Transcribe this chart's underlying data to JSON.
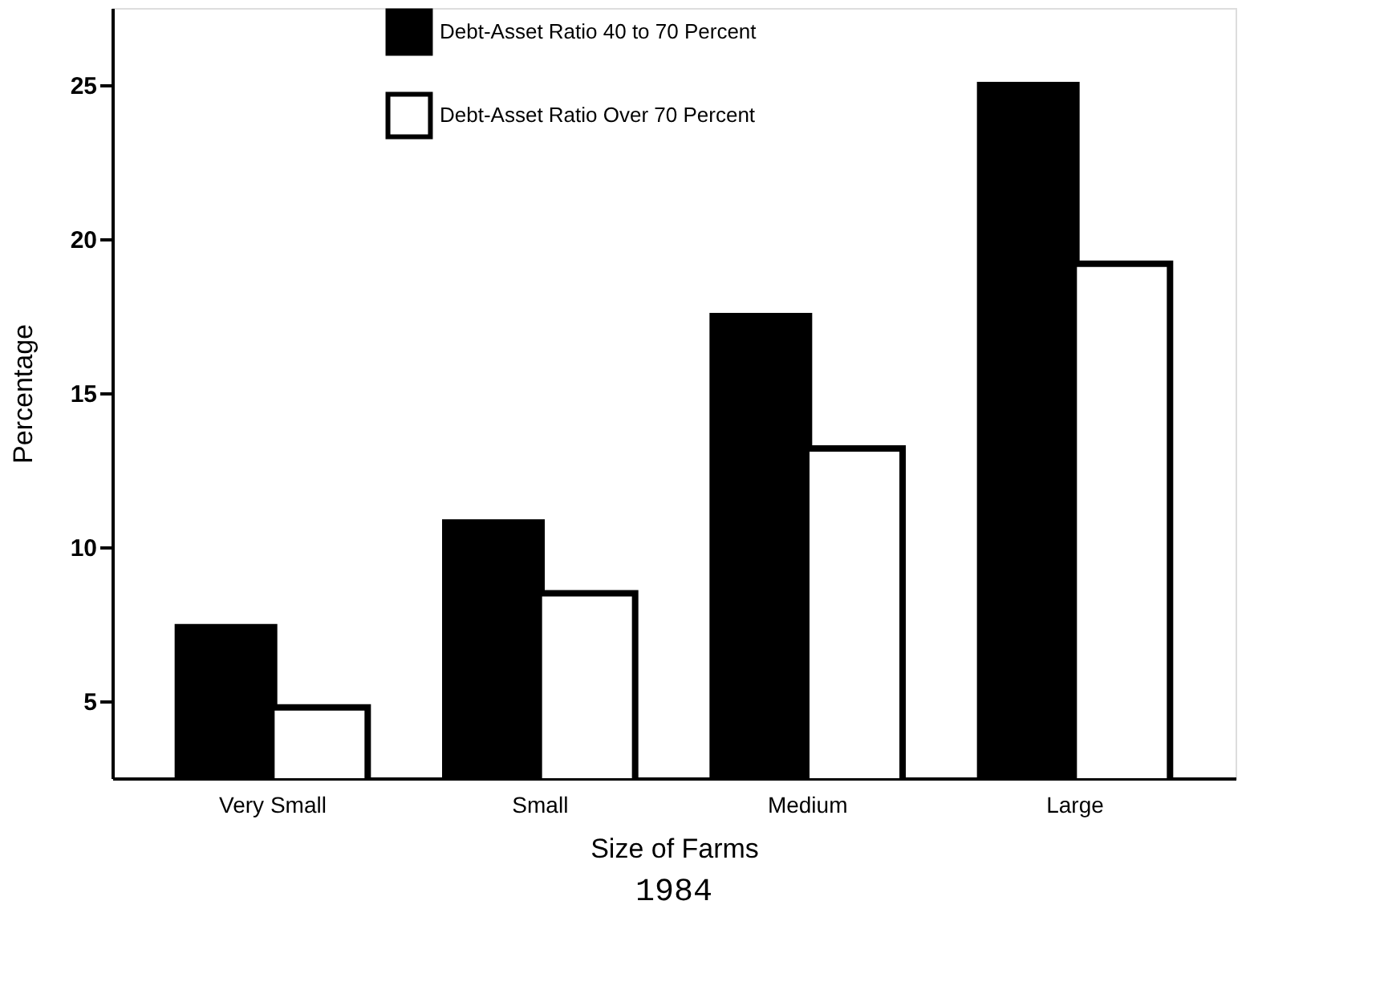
{
  "chart_data": {
    "type": "bar",
    "xlabel": "Size of Farms",
    "ylabel": "Percentage",
    "annotations": [
      "1984"
    ],
    "categories": [
      "Very Small",
      "Small",
      "Medium",
      "Large"
    ],
    "series": [
      {
        "name": "Debt-Asset Ratio 40 to 70 Percent",
        "color": "#000000",
        "values": [
          7.4,
          10.8,
          17.5,
          25
        ]
      },
      {
        "name": "Debt-Asset Ratio Over 70 Percent",
        "color": "#ffffff",
        "values": [
          4.8,
          8.5,
          13.2,
          19.2
        ]
      }
    ],
    "ylim": [
      2.5,
      27.5
    ],
    "yticks": [
      5,
      10,
      15,
      20,
      25
    ],
    "grid": false,
    "legend": "top"
  }
}
